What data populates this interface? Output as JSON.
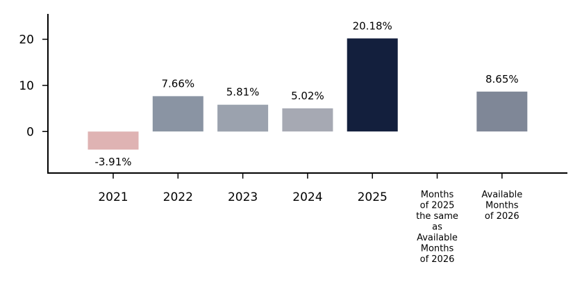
{
  "chart_data": {
    "type": "bar",
    "categories": [
      "2021",
      "2022",
      "2023",
      "2024",
      "2025",
      "Months of 2025 the same as Available Months of 2026",
      "Available Months of 2026"
    ],
    "category_lines": [
      [
        "2021"
      ],
      [
        "2022"
      ],
      [
        "2023"
      ],
      [
        "2024"
      ],
      [
        "2025"
      ],
      [
        "Months",
        "of 2025",
        "the same",
        "as",
        "Available",
        "Months",
        "of 2026"
      ],
      [
        "Available",
        "Months",
        "of 2026"
      ]
    ],
    "values": [
      -3.91,
      7.66,
      5.81,
      5.02,
      20.18,
      null,
      8.65
    ],
    "data_labels": [
      "-3.91%",
      "7.66%",
      "5.81%",
      "5.02%",
      "20.18%",
      "",
      "8.65%"
    ],
    "colors": [
      "#dfb3b3",
      "#8a94a3",
      "#9ba2ae",
      "#a6a9b3",
      "#131f3d",
      "#ffffff",
      "#7f8797"
    ],
    "yticks": [
      0,
      10,
      20
    ],
    "ylim": [
      -9,
      25.5
    ],
    "title": "",
    "xlabel": "",
    "ylabel": "",
    "grid": false,
    "legend": "none"
  }
}
